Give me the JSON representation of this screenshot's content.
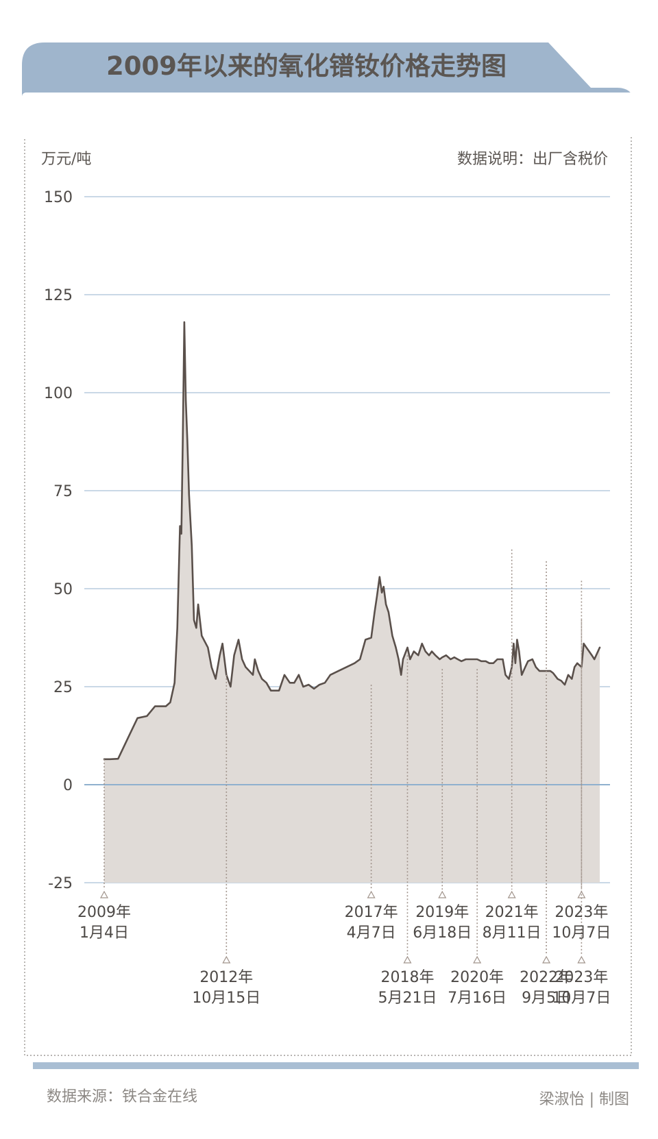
{
  "chart_data": {
    "type": "area",
    "title": "2009年以来的氧化镨钕价格走势图",
    "ylabel": "万元/吨",
    "note": "数据说明：出厂含税价",
    "ylim": [
      -25,
      150
    ],
    "yticks": [
      150,
      125,
      100,
      75,
      50,
      25,
      0,
      -25
    ],
    "grid": true,
    "legend": "none",
    "colors": {
      "line": "#5a504b",
      "fill": "#e0dbd7",
      "grid": "#a9c1d8",
      "zero": "#8fb0ce",
      "panel": "#9fb5cc",
      "marker": "#a0938b"
    },
    "x_span": [
      "2009-01-04",
      "2024-04-30"
    ],
    "annotations": [
      {
        "year": "2009年",
        "day": "1月4日",
        "date": "2009-01-04",
        "value": 6.5,
        "row": 1
      },
      {
        "year": "2012年",
        "day": "10月15日",
        "date": "2012-10-15",
        "value": 28,
        "row": 2
      },
      {
        "year": "2017年",
        "day": "4月7日",
        "date": "2017-04-07",
        "value": 25.5,
        "row": 1
      },
      {
        "year": "2018年",
        "day": "5月21日",
        "date": "2018-05-21",
        "value": 33,
        "row": 2
      },
      {
        "year": "2019年",
        "day": "6月18日",
        "date": "2019-06-18",
        "value": 29.5,
        "row": 1
      },
      {
        "year": "2020年",
        "day": "7月16日",
        "date": "2020-07-16",
        "value": 29.5,
        "row": 2
      },
      {
        "year": "2021年",
        "day": "8月11日",
        "date": "2021-08-11",
        "value": 60,
        "row": 1
      },
      {
        "year": "2022年",
        "day": "9月5日",
        "date": "2022-09-05",
        "value": 57,
        "row": 2
      },
      {
        "year": "2023年",
        "day": "10月7日",
        "date": "2023-10-07",
        "value": 52,
        "row": 1
      },
      {
        "year": "2023年",
        "day": "10月7日",
        "date": "2023-10-07",
        "value": 42,
        "row": 2
      }
    ],
    "series": [
      {
        "values": [
          [
            "2009-01-04",
            6.5
          ],
          [
            "2009-03-10",
            6.5
          ],
          [
            "2009-06-10",
            6.6
          ],
          [
            "2009-10-01",
            12
          ],
          [
            "2010-01-15",
            17
          ],
          [
            "2010-05-01",
            17.5
          ],
          [
            "2010-08-01",
            20
          ],
          [
            "2010-12-01",
            20
          ],
          [
            "2011-01-20",
            21
          ],
          [
            "2011-03-10",
            26
          ],
          [
            "2011-04-10",
            40
          ],
          [
            "2011-05-10",
            66
          ],
          [
            "2011-05-25",
            64
          ],
          [
            "2011-06-10",
            87
          ],
          [
            "2011-06-28",
            118
          ],
          [
            "2011-07-15",
            98
          ],
          [
            "2011-08-01",
            88
          ],
          [
            "2011-08-20",
            74
          ],
          [
            "2011-09-20",
            61
          ],
          [
            "2011-10-15",
            42
          ],
          [
            "2011-11-10",
            40
          ],
          [
            "2011-12-01",
            46
          ],
          [
            "2012-01-10",
            38
          ],
          [
            "2012-03-20",
            35
          ],
          [
            "2012-05-01",
            30
          ],
          [
            "2012-06-15",
            27
          ],
          [
            "2012-08-01",
            33
          ],
          [
            "2012-09-01",
            36
          ],
          [
            "2012-10-15",
            28
          ],
          [
            "2012-12-01",
            25
          ],
          [
            "2013-01-10",
            33
          ],
          [
            "2013-03-01",
            37
          ],
          [
            "2013-04-10",
            32
          ],
          [
            "2013-05-20",
            30
          ],
          [
            "2013-07-01",
            29
          ],
          [
            "2013-08-10",
            28
          ],
          [
            "2013-09-01",
            32
          ],
          [
            "2013-10-10",
            29
          ],
          [
            "2013-11-20",
            27
          ],
          [
            "2014-01-10",
            26
          ],
          [
            "2014-03-01",
            24
          ],
          [
            "2014-06-01",
            24
          ],
          [
            "2014-08-01",
            28
          ],
          [
            "2014-10-01",
            26
          ],
          [
            "2014-11-20",
            26
          ],
          [
            "2015-01-10",
            28
          ],
          [
            "2015-03-01",
            25
          ],
          [
            "2015-05-01",
            25.5
          ],
          [
            "2015-07-01",
            24.5
          ],
          [
            "2015-09-01",
            25.5
          ],
          [
            "2015-11-01",
            26
          ],
          [
            "2016-01-01",
            28
          ],
          [
            "2016-04-01",
            29
          ],
          [
            "2016-07-01",
            30
          ],
          [
            "2016-10-01",
            31
          ],
          [
            "2016-12-01",
            32
          ],
          [
            "2017-02-01",
            37
          ],
          [
            "2017-04-07",
            37.5
          ],
          [
            "2017-05-15",
            44
          ],
          [
            "2017-06-10",
            48
          ],
          [
            "2017-07-10",
            53
          ],
          [
            "2017-08-05",
            49
          ],
          [
            "2017-08-25",
            50.5
          ],
          [
            "2017-09-20",
            46
          ],
          [
            "2017-10-20",
            44
          ],
          [
            "2017-12-01",
            38
          ],
          [
            "2018-01-10",
            35
          ],
          [
            "2018-02-10",
            32
          ],
          [
            "2018-03-10",
            28
          ],
          [
            "2018-04-01",
            32
          ],
          [
            "2018-05-21",
            35
          ],
          [
            "2018-06-20",
            32
          ],
          [
            "2018-08-01",
            34
          ],
          [
            "2018-09-20",
            33
          ],
          [
            "2018-11-01",
            36
          ],
          [
            "2018-12-10",
            34
          ],
          [
            "2019-01-20",
            33
          ],
          [
            "2019-02-20",
            34
          ],
          [
            "2019-04-01",
            33
          ],
          [
            "2019-05-20",
            32
          ],
          [
            "2019-06-18",
            32.5
          ],
          [
            "2019-08-01",
            33
          ],
          [
            "2019-09-20",
            32
          ],
          [
            "2019-11-01",
            32.5
          ],
          [
            "2019-12-10",
            32
          ],
          [
            "2020-01-20",
            31.5
          ],
          [
            "2020-03-10",
            32
          ],
          [
            "2020-04-20",
            32
          ],
          [
            "2020-06-01",
            32
          ],
          [
            "2020-07-16",
            32
          ],
          [
            "2020-09-01",
            31.5
          ],
          [
            "2020-10-20",
            31.5
          ],
          [
            "2020-12-01",
            31
          ],
          [
            "2021-01-15",
            31
          ],
          [
            "2021-03-01",
            32
          ],
          [
            "2021-05-01",
            32
          ],
          [
            "2021-06-01",
            28
          ],
          [
            "2021-07-10",
            27
          ],
          [
            "2021-08-11",
            30
          ],
          [
            "2021-09-01",
            36
          ],
          [
            "2021-09-20",
            31
          ],
          [
            "2021-10-10",
            37
          ],
          [
            "2021-11-01",
            34
          ],
          [
            "2021-12-01",
            28
          ],
          [
            "2022-01-10",
            30
          ],
          [
            "2022-02-10",
            31.5
          ],
          [
            "2022-04-01",
            32
          ],
          [
            "2022-05-10",
            30
          ],
          [
            "2022-06-20",
            29
          ],
          [
            "2022-09-05",
            29
          ],
          [
            "2022-10-20",
            29
          ],
          [
            "2022-11-20",
            28.5
          ],
          [
            "2023-01-10",
            27
          ],
          [
            "2023-02-20",
            26.5
          ],
          [
            "2023-04-01",
            25.5
          ],
          [
            "2023-05-10",
            28
          ],
          [
            "2023-06-20",
            27
          ],
          [
            "2023-07-20",
            30
          ],
          [
            "2023-08-20",
            31
          ],
          [
            "2023-10-07",
            30
          ],
          [
            "2023-11-01",
            36
          ],
          [
            "2023-12-01",
            35
          ],
          [
            "2024-01-01",
            34
          ],
          [
            "2024-02-01",
            33
          ],
          [
            "2024-03-01",
            32
          ],
          [
            "2024-04-30",
            35
          ]
        ]
      }
    ]
  },
  "x_labels": {
    "r1": [
      "2009年",
      "2017年",
      "2019年",
      "2021年",
      "2023年"
    ],
    "r1_day": [
      "1月4日",
      "4月7日",
      "6月18日",
      "8月11日",
      "10月7日"
    ],
    "r2": [
      "2012年",
      "2018年",
      "2020年",
      "2022年",
      "2023年"
    ],
    "r2_day": [
      "10月15日",
      "5月21日",
      "7月16日",
      "9月5日",
      "10月7日"
    ]
  },
  "footer": {
    "source": "数据来源：铁合金在线",
    "credit": "梁淑怡 | 制图"
  }
}
